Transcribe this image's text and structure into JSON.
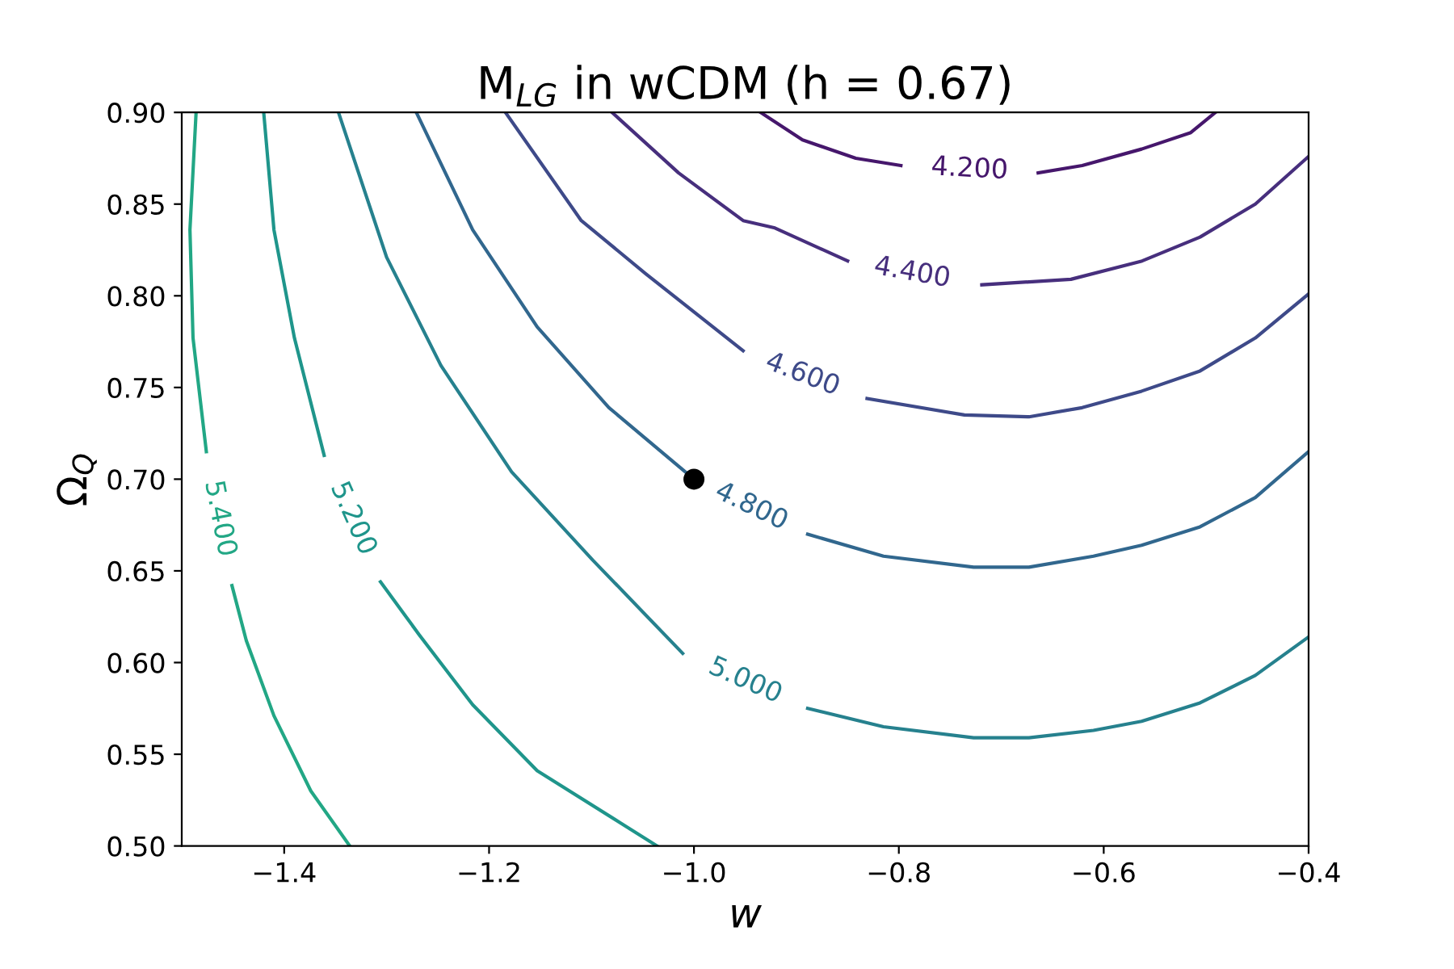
{
  "chart_data": {
    "type": "line",
    "title": "M$_{LG}$ in wCDM (h = 0.67)",
    "xlabel": "w",
    "ylabel": "Ω$_{Q}$",
    "xlim": [
      -1.5,
      -0.4
    ],
    "ylim": [
      0.5,
      0.9
    ],
    "xticks": [
      {
        "value": -1.4,
        "label": "−1.4"
      },
      {
        "value": -1.2,
        "label": "−1.2"
      },
      {
        "value": -1.0,
        "label": "−1.0"
      },
      {
        "value": -0.8,
        "label": "−0.8"
      },
      {
        "value": -0.6,
        "label": "−0.6"
      },
      {
        "value": -0.4,
        "label": "−0.4"
      }
    ],
    "yticks": [
      {
        "value": 0.5,
        "label": "0.50"
      },
      {
        "value": 0.55,
        "label": "0.55"
      },
      {
        "value": 0.6,
        "label": "0.60"
      },
      {
        "value": 0.65,
        "label": "0.65"
      },
      {
        "value": 0.7,
        "label": "0.70"
      },
      {
        "value": 0.75,
        "label": "0.75"
      },
      {
        "value": 0.8,
        "label": "0.80"
      },
      {
        "value": 0.85,
        "label": "0.85"
      },
      {
        "value": 0.9,
        "label": "0.90"
      }
    ],
    "grid": false,
    "legend": false,
    "marker": "none",
    "series": [
      {
        "name": "4.200",
        "color": "#46176c",
        "x": [
          -0.935,
          -0.894,
          -0.842,
          -0.798,
          -0.731,
          -0.664,
          -0.621,
          -0.563,
          -0.515,
          -0.491
        ],
        "values": [
          0.9,
          0.885,
          0.875,
          0.871,
          null,
          0.867,
          0.871,
          0.88,
          0.889,
          0.9
        ]
      },
      {
        "name": "4.400",
        "color": "#472f7d",
        "x": [
          -1.08,
          -1.015,
          -0.952,
          -0.921,
          -0.85,
          -0.787,
          -0.719,
          -0.632,
          -0.5625,
          -0.506,
          -0.452,
          -0.4
        ],
        "values": [
          0.9,
          0.867,
          0.841,
          0.837,
          0.819,
          null,
          0.806,
          0.809,
          0.819,
          0.832,
          0.85,
          0.876
        ]
      },
      {
        "name": "4.600",
        "color": "#3e4a89",
        "x": [
          -1.184,
          -1.11,
          -1.047,
          -0.952,
          -0.894,
          -0.831,
          -0.736,
          -0.673,
          -0.621,
          -0.563,
          -0.506,
          -0.452,
          -0.4
        ],
        "values": [
          0.9,
          0.841,
          0.812,
          0.77,
          null,
          0.744,
          0.735,
          0.734,
          0.739,
          0.748,
          0.759,
          0.777,
          0.801
        ]
      },
      {
        "name": "4.800",
        "color": "#31678e",
        "x": [
          -1.271,
          -1.216,
          -1.153,
          -1.083,
          -1.0,
          -0.944,
          -0.889,
          -0.815,
          -0.727,
          -0.673,
          -0.61,
          -0.563,
          -0.506,
          -0.452,
          -0.4
        ],
        "values": [
          0.9,
          0.836,
          0.783,
          0.739,
          0.7,
          null,
          0.67,
          0.658,
          0.652,
          0.652,
          0.658,
          0.664,
          0.674,
          0.69,
          0.715
        ]
      },
      {
        "name": "5.000",
        "color": "#26818e",
        "x": [
          -1.347,
          -1.3,
          -1.247,
          -1.178,
          -1.099,
          -1.011,
          -0.95,
          -0.889,
          -0.815,
          -0.727,
          -0.673,
          -0.61,
          -0.563,
          -0.506,
          -0.452,
          -0.4
        ],
        "values": [
          0.9,
          0.821,
          0.762,
          0.704,
          0.656,
          0.605,
          null,
          0.575,
          0.565,
          0.559,
          0.559,
          0.563,
          0.568,
          0.578,
          0.593,
          0.614
        ]
      },
      {
        "name": "5.200",
        "color": "#1f958b",
        "x": [
          -1.42,
          -1.41,
          -1.39,
          -1.361,
          -1.333,
          -1.306,
          -1.268,
          -1.216,
          -1.153,
          -1.036
        ],
        "values": [
          0.9,
          0.836,
          0.777,
          0.713,
          null,
          0.644,
          0.615,
          0.577,
          0.541,
          0.5
        ]
      },
      {
        "name": "5.400",
        "color": "#22a785",
        "x": [
          -1.486,
          -1.492,
          -1.489,
          -1.476,
          -1.463,
          -1.451,
          -1.437,
          -1.41,
          -1.374,
          -1.336
        ],
        "values": [
          0.9,
          0.836,
          0.777,
          0.715,
          null,
          0.642,
          0.612,
          0.571,
          0.53,
          0.5
        ]
      },
      {
        "type": "scatter",
        "marker": "circle",
        "color": "#000000",
        "x": [
          -1.0
        ],
        "values": [
          0.7
        ]
      }
    ]
  }
}
